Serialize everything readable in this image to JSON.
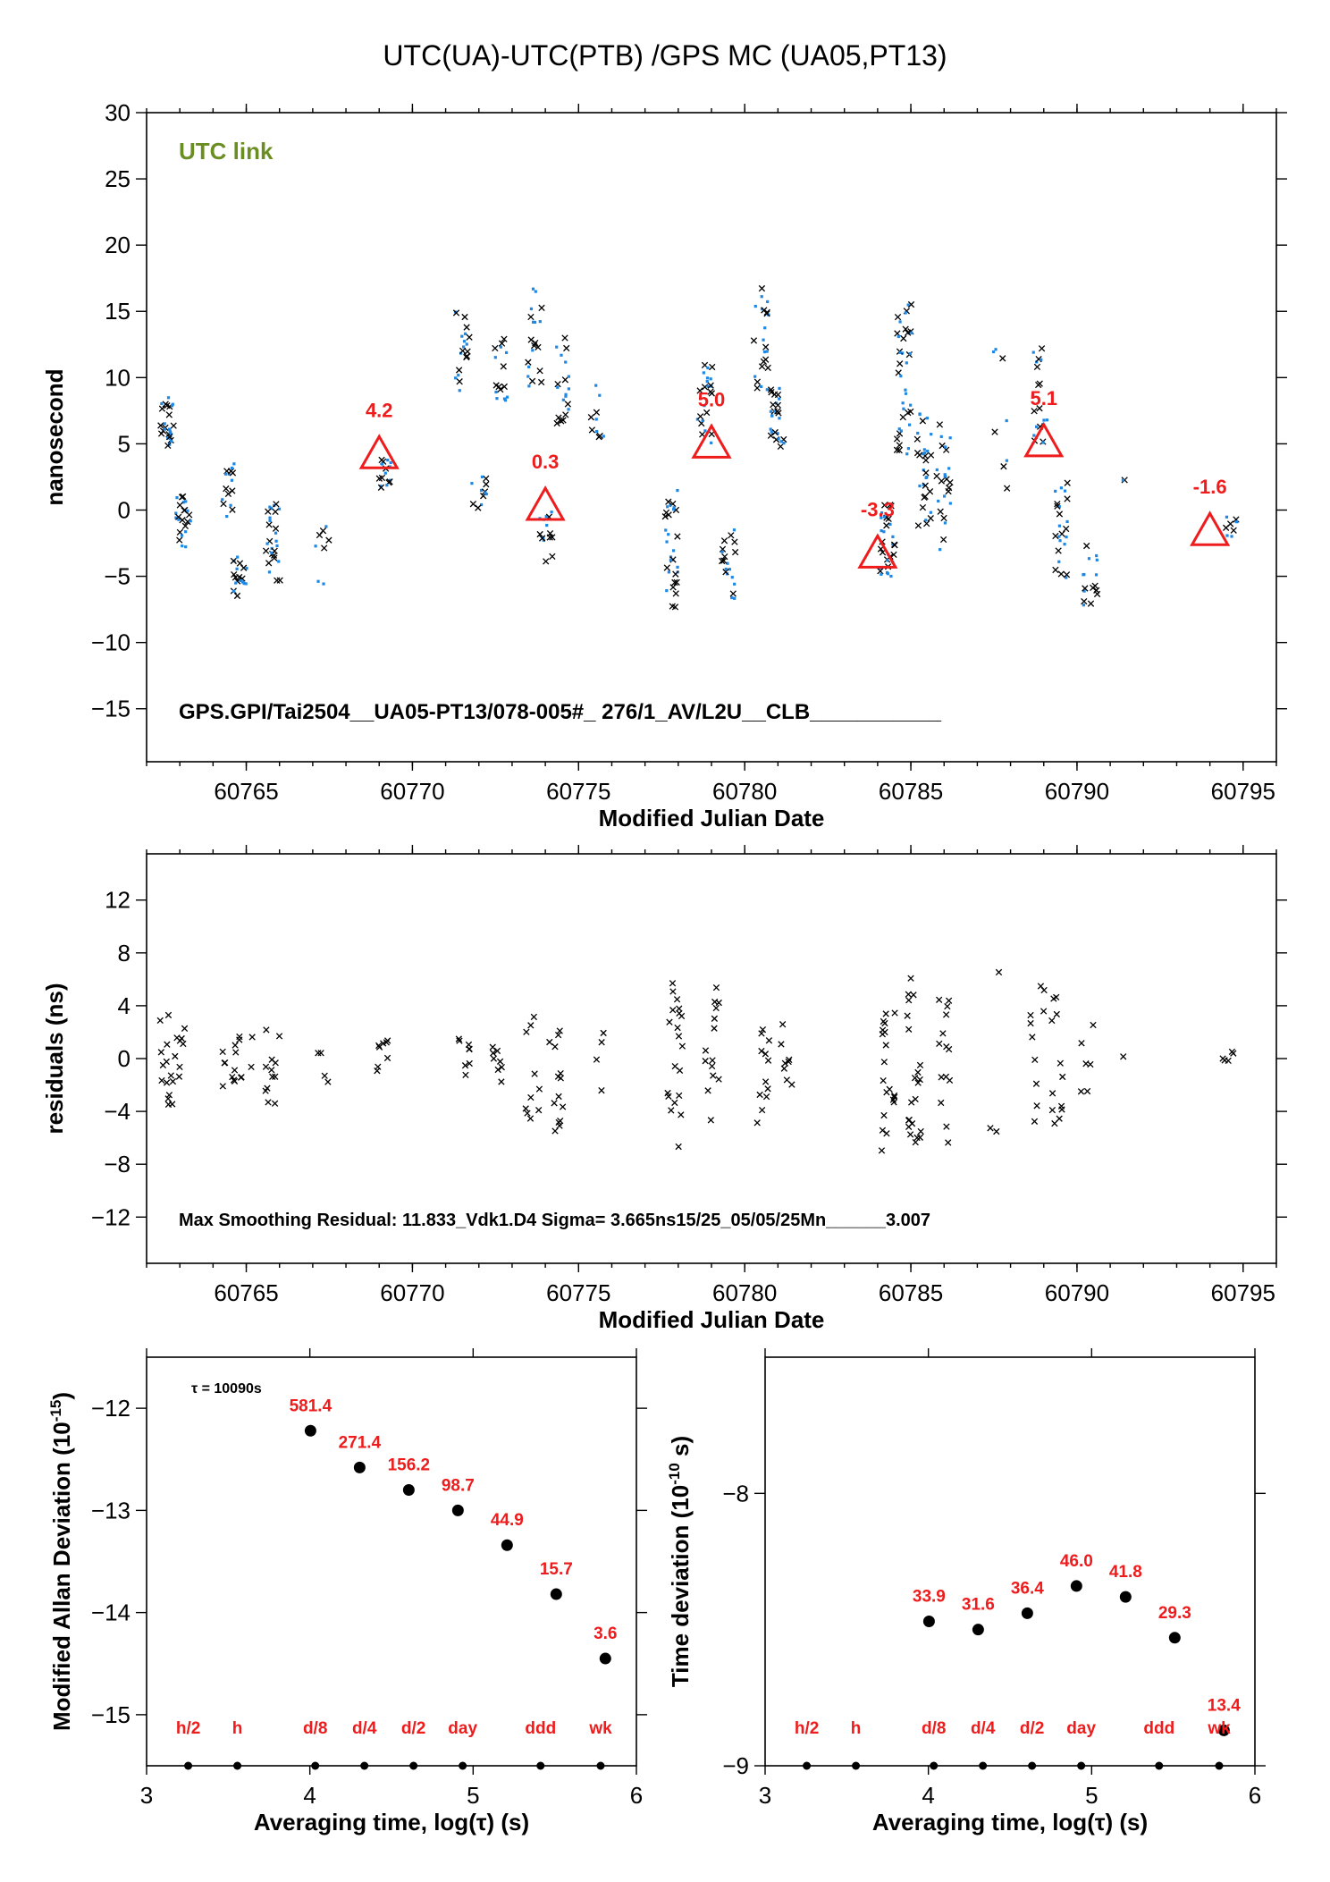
{
  "title": "UTC(UA)-UTC(PTB)  /GPS  MC  (UA05,PT13)",
  "colors": {
    "accent_red": "#ee1c1c",
    "link_green": "#6b8e23",
    "data_blue": "#1e88e5",
    "data_black": "#000000"
  },
  "chart_data": [
    {
      "type": "scatter",
      "name": "main",
      "xlabel": "Modified Julian Date",
      "ylabel": "nanosecond",
      "xlim": [
        60762,
        60796
      ],
      "ylim": [
        -19,
        30
      ],
      "xticks": [
        60765,
        60770,
        60775,
        60780,
        60785,
        60790,
        60795
      ],
      "yticks": [
        -15,
        -10,
        -5,
        0,
        5,
        10,
        15,
        20,
        25,
        30
      ],
      "tag": "UTC link",
      "footer": "GPS.GPI/Tai2504__UA05-PT13/078-005#_  276/1_AV/L2U__CLB___________",
      "triangles": [
        {
          "x": 60769.0,
          "y": 4.2,
          "label": "4.2"
        },
        {
          "x": 60774.0,
          "y": 0.3,
          "label": "0.3"
        },
        {
          "x": 60779.0,
          "y": 5.0,
          "label": "5.0"
        },
        {
          "x": 60784.0,
          "y": -3.3,
          "label": "-3.3"
        },
        {
          "x": 60789.0,
          "y": 5.1,
          "label": "5.1"
        },
        {
          "x": 60794.0,
          "y": -1.6,
          "label": "-1.6"
        }
      ],
      "clusters": [
        {
          "x": 60762.6,
          "y": 6.5,
          "n": 14,
          "spread": 2.0
        },
        {
          "x": 60763.1,
          "y": -0.8,
          "n": 12,
          "spread": 2.0
        },
        {
          "x": 60764.5,
          "y": 1.5,
          "n": 8,
          "spread": 2.0
        },
        {
          "x": 60764.8,
          "y": -5.0,
          "n": 10,
          "spread": 1.5
        },
        {
          "x": 60765.8,
          "y": -2.5,
          "n": 14,
          "spread": 3.0
        },
        {
          "x": 60767.3,
          "y": -3.5,
          "n": 4,
          "spread": 2.5
        },
        {
          "x": 60769.2,
          "y": 2.8,
          "n": 8,
          "spread": 1.2
        },
        {
          "x": 60771.5,
          "y": 12.0,
          "n": 10,
          "spread": 3.0
        },
        {
          "x": 60772.0,
          "y": 1.5,
          "n": 6,
          "spread": 1.5
        },
        {
          "x": 60772.7,
          "y": 10.5,
          "n": 8,
          "spread": 2.5
        },
        {
          "x": 60773.7,
          "y": 13.0,
          "n": 10,
          "spread": 4.0
        },
        {
          "x": 60774.0,
          "y": -2.0,
          "n": 8,
          "spread": 2.0
        },
        {
          "x": 60774.5,
          "y": 10.0,
          "n": 10,
          "spread": 3.5
        },
        {
          "x": 60775.6,
          "y": 7.5,
          "n": 5,
          "spread": 2.0
        },
        {
          "x": 60777.8,
          "y": -3.0,
          "n": 16,
          "spread": 4.5
        },
        {
          "x": 60778.8,
          "y": 8.0,
          "n": 12,
          "spread": 3.0
        },
        {
          "x": 60779.5,
          "y": -4.0,
          "n": 10,
          "spread": 3.0
        },
        {
          "x": 60780.5,
          "y": 13.0,
          "n": 12,
          "spread": 4.0
        },
        {
          "x": 60781.0,
          "y": 7.0,
          "n": 14,
          "spread": 2.5
        },
        {
          "x": 60784.3,
          "y": -2.0,
          "n": 16,
          "spread": 3.0
        },
        {
          "x": 60784.8,
          "y": 10.0,
          "n": 20,
          "spread": 6.0
        },
        {
          "x": 60785.4,
          "y": 3.0,
          "n": 16,
          "spread": 4.5
        },
        {
          "x": 60786.0,
          "y": 2.0,
          "n": 12,
          "spread": 5.0
        },
        {
          "x": 60787.7,
          "y": 5.0,
          "n": 4,
          "spread": 10.0
        },
        {
          "x": 60788.9,
          "y": 8.5,
          "n": 10,
          "spread": 4.0
        },
        {
          "x": 60789.5,
          "y": -1.5,
          "n": 12,
          "spread": 4.0
        },
        {
          "x": 60790.4,
          "y": -5.0,
          "n": 8,
          "spread": 2.5
        },
        {
          "x": 60791.6,
          "y": 2.2,
          "n": 1,
          "spread": 0.2
        },
        {
          "x": 60794.6,
          "y": -1.2,
          "n": 4,
          "spread": 0.8
        }
      ]
    },
    {
      "type": "scatter",
      "name": "residuals",
      "xlabel": "Modified Julian Date",
      "ylabel": "residuals (ns)",
      "xlim": [
        60762,
        60796
      ],
      "ylim": [
        -15.5,
        15.5
      ],
      "xticks": [
        60765,
        60770,
        60775,
        60780,
        60785,
        60790,
        60795
      ],
      "yticks": [
        -12,
        -8,
        -4,
        0,
        4,
        8,
        12
      ],
      "footer": "Max Smoothing Residual: 11.833_Vdk1.D4  Sigma= 3.665ns15/25_05/05/25Mn______3.007",
      "clusters": [
        {
          "x": 60762.6,
          "y": 0.0,
          "n": 14,
          "spread": 3.5
        },
        {
          "x": 60763.0,
          "y": 0.5,
          "n": 8,
          "spread": 2.0
        },
        {
          "x": 60764.5,
          "y": -0.5,
          "n": 10,
          "spread": 1.8
        },
        {
          "x": 60765.0,
          "y": 0.5,
          "n": 6,
          "spread": 2.0
        },
        {
          "x": 60765.8,
          "y": -0.5,
          "n": 12,
          "spread": 3.0
        },
        {
          "x": 60767.3,
          "y": 0.5,
          "n": 4,
          "spread": 2.5
        },
        {
          "x": 60769.1,
          "y": 0.2,
          "n": 8,
          "spread": 1.2
        },
        {
          "x": 60771.5,
          "y": 0.0,
          "n": 8,
          "spread": 1.5
        },
        {
          "x": 60772.6,
          "y": 0.2,
          "n": 8,
          "spread": 2.5
        },
        {
          "x": 60773.6,
          "y": -1.0,
          "n": 10,
          "spread": 4.5
        },
        {
          "x": 60774.3,
          "y": 0.0,
          "n": 14,
          "spread": 5.5
        },
        {
          "x": 60775.6,
          "y": 0.0,
          "n": 4,
          "spread": 2.5
        },
        {
          "x": 60777.9,
          "y": 0.0,
          "n": 20,
          "spread": 7.0
        },
        {
          "x": 60779.0,
          "y": 0.5,
          "n": 14,
          "spread": 6.0
        },
        {
          "x": 60780.6,
          "y": -1.0,
          "n": 12,
          "spread": 4.0
        },
        {
          "x": 60781.2,
          "y": 0.5,
          "n": 8,
          "spread": 2.5
        },
        {
          "x": 60784.3,
          "y": -1.0,
          "n": 20,
          "spread": 6.0
        },
        {
          "x": 60785.1,
          "y": 0.0,
          "n": 22,
          "spread": 6.5
        },
        {
          "x": 60786.0,
          "y": -1.0,
          "n": 14,
          "spread": 5.5
        },
        {
          "x": 60787.5,
          "y": 0.0,
          "n": 3,
          "spread": 7.0
        },
        {
          "x": 60788.8,
          "y": 0.5,
          "n": 10,
          "spread": 5.5
        },
        {
          "x": 60789.4,
          "y": 0.0,
          "n": 12,
          "spread": 5.0
        },
        {
          "x": 60790.3,
          "y": 0.5,
          "n": 6,
          "spread": 3.0
        },
        {
          "x": 60791.6,
          "y": 0.0,
          "n": 1,
          "spread": 0.2
        },
        {
          "x": 60794.6,
          "y": 0.0,
          "n": 5,
          "spread": 0.6
        }
      ]
    },
    {
      "type": "scatter",
      "name": "mdev",
      "xlabel": "Averaging time, log(τ) (s)",
      "ylabel": "Modified Allan Deviation (10",
      "ylabel_sup": "-15",
      "ylabel_tail": ")",
      "tau_note": "τ = 10090s",
      "xlim": [
        3,
        6
      ],
      "ylim": [
        -15.5,
        -11.5
      ],
      "xticks": [
        3,
        4,
        5,
        6
      ],
      "yticks": [
        -15,
        -14,
        -13,
        -12
      ],
      "points": [
        {
          "x": 4.004,
          "y": -12.22,
          "label": "581.4"
        },
        {
          "x": 4.305,
          "y": -12.58,
          "label": "271.4"
        },
        {
          "x": 4.606,
          "y": -12.8,
          "label": "156.2"
        },
        {
          "x": 4.907,
          "y": -13.0,
          "label": "98.7"
        },
        {
          "x": 5.208,
          "y": -13.34,
          "label": "44.9"
        },
        {
          "x": 5.509,
          "y": -13.82,
          "label": "15.7"
        },
        {
          "x": 5.81,
          "y": -14.45,
          "label": "3.6"
        }
      ],
      "markers": [
        {
          "x": 3.255,
          "label": "h/2"
        },
        {
          "x": 3.556,
          "label": "h"
        },
        {
          "x": 4.033,
          "label": "d/8"
        },
        {
          "x": 4.334,
          "label": "d/4"
        },
        {
          "x": 4.635,
          "label": "d/2"
        },
        {
          "x": 4.936,
          "label": "day"
        },
        {
          "x": 5.413,
          "label": "ddd"
        },
        {
          "x": 5.781,
          "label": "wk"
        }
      ]
    },
    {
      "type": "scatter",
      "name": "tdev",
      "xlabel": "Averaging time, log(τ) (s)",
      "ylabel": "Time deviation (10",
      "ylabel_sup": "-10",
      "ylabel_tail": " s)",
      "xlim": [
        3,
        6
      ],
      "ylim": [
        -9.0,
        -7.5
      ],
      "xticks": [
        3,
        4,
        5,
        6
      ],
      "yticks": [
        -9,
        -8
      ],
      "points": [
        {
          "x": 4.004,
          "y": -8.47,
          "label": "33.9"
        },
        {
          "x": 4.305,
          "y": -8.5,
          "label": "31.6"
        },
        {
          "x": 4.606,
          "y": -8.44,
          "label": "36.4"
        },
        {
          "x": 4.907,
          "y": -8.34,
          "label": "46.0"
        },
        {
          "x": 5.208,
          "y": -8.38,
          "label": "41.8"
        },
        {
          "x": 5.509,
          "y": -8.53,
          "label": "29.3"
        },
        {
          "x": 5.81,
          "y": -8.87,
          "label": "13.4"
        }
      ],
      "markers": [
        {
          "x": 3.255,
          "label": "h/2"
        },
        {
          "x": 3.556,
          "label": "h"
        },
        {
          "x": 4.033,
          "label": "d/8"
        },
        {
          "x": 4.334,
          "label": "d/4"
        },
        {
          "x": 4.635,
          "label": "d/2"
        },
        {
          "x": 4.936,
          "label": "day"
        },
        {
          "x": 5.413,
          "label": "ddd"
        },
        {
          "x": 5.781,
          "label": "wk"
        }
      ]
    }
  ]
}
